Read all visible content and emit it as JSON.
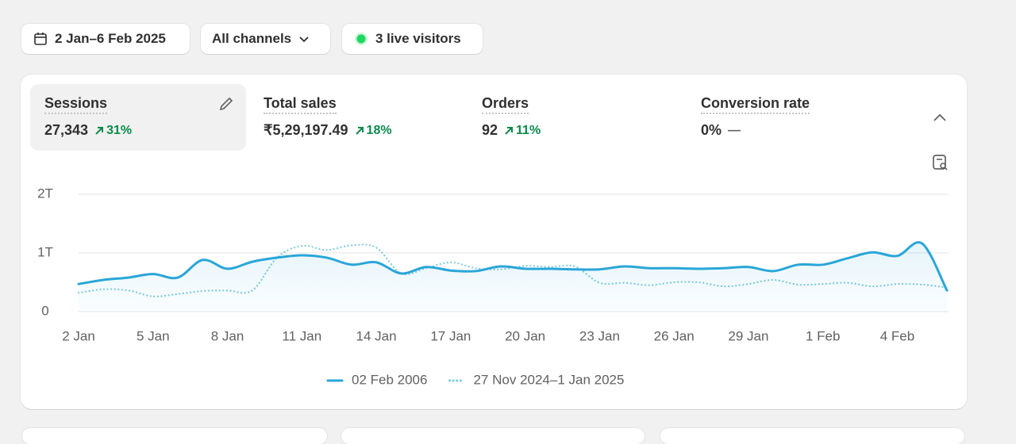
{
  "toolbar": {
    "date_range": "2 Jan–6 Feb 2025",
    "channels": "All channels",
    "live": "3 live visitors"
  },
  "metrics": [
    {
      "label": "Sessions",
      "value": "27,343",
      "change": "31%"
    },
    {
      "label": "Total sales",
      "value": "₹5,29,197.49",
      "change": "18%"
    },
    {
      "label": "Orders",
      "value": "92",
      "change": "11%"
    },
    {
      "label": "Conversion rate",
      "value": "0%",
      "change": "—"
    }
  ],
  "chart_data": {
    "type": "line",
    "categories": [
      "2 Jan",
      null,
      null,
      "5 Jan",
      null,
      null,
      "8 Jan",
      null,
      null,
      "11 Jan",
      null,
      null,
      "14 Jan",
      null,
      null,
      "17 Jan",
      null,
      null,
      "20 Jan",
      null,
      null,
      "23 Jan",
      null,
      null,
      "26 Jan",
      null,
      null,
      "29 Jan",
      null,
      null,
      "1 Feb",
      null,
      null,
      "4 Feb",
      null,
      null
    ],
    "series": [
      {
        "name": "02 Feb 2006",
        "color": "#29a6d8",
        "style": "solid",
        "values": [
          0.47,
          0.54,
          0.58,
          0.64,
          0.58,
          0.88,
          0.73,
          0.85,
          0.92,
          0.96,
          0.92,
          0.8,
          0.84,
          0.65,
          0.76,
          0.7,
          0.69,
          0.77,
          0.73,
          0.73,
          0.72,
          0.72,
          0.77,
          0.74,
          0.74,
          0.73,
          0.74,
          0.76,
          0.69,
          0.8,
          0.8,
          0.91,
          1.01,
          0.95,
          1.16,
          0.36
        ]
      },
      {
        "name": "27 Nov 2024–1 Jan 2025",
        "color": "#7cc9e0",
        "style": "dotted",
        "values": [
          0.32,
          0.38,
          0.36,
          0.26,
          0.3,
          0.35,
          0.36,
          0.36,
          0.92,
          1.12,
          1.05,
          1.13,
          1.09,
          0.65,
          0.74,
          0.84,
          0.74,
          0.72,
          0.78,
          0.76,
          0.77,
          0.49,
          0.49,
          0.45,
          0.5,
          0.5,
          0.43,
          0.47,
          0.54,
          0.46,
          0.47,
          0.49,
          0.43,
          0.47,
          0.46,
          0.41
        ]
      }
    ],
    "ylim": [
      0,
      2
    ],
    "yticks": [
      0,
      {
        "value": 1,
        "label": "1T"
      },
      {
        "value": 2,
        "label": "2T"
      }
    ],
    "grid": true
  }
}
